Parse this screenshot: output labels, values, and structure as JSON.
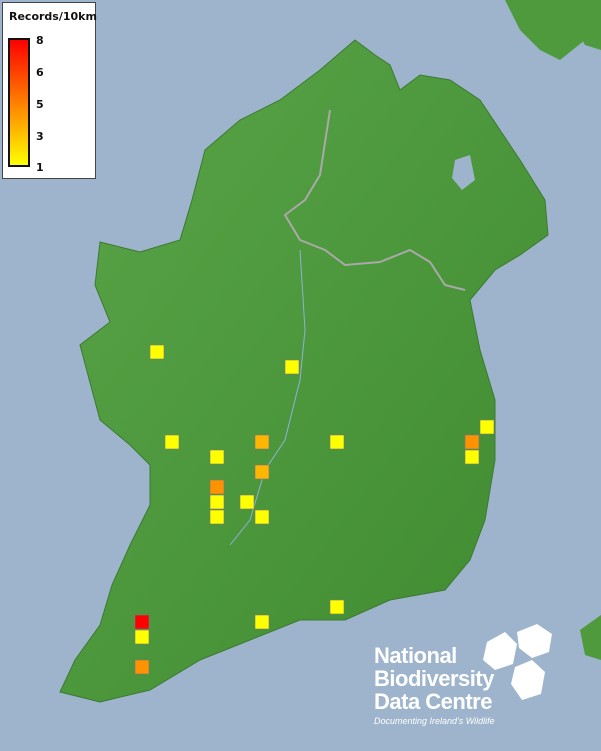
{
  "legend": {
    "title": "Records/10km",
    "ticks": [
      "8",
      "6",
      "5",
      "3",
      "1"
    ],
    "colors": {
      "high": "#ff0000",
      "mid": "#ff8c00",
      "low": "#ffff00"
    }
  },
  "map": {
    "sea_color": "#9db4cc",
    "land_color": "#4f9a3c",
    "squares": [
      1,
      1,
      1,
      3,
      1,
      4,
      1,
      1,
      1,
      3,
      4,
      1,
      1,
      1,
      1,
      1,
      1,
      8,
      1,
      4
    ]
  },
  "logo": {
    "line1": "National",
    "line2": "Biodiversity",
    "line3": "Data Centre",
    "tagline": "Documenting Ireland's Wildlife"
  }
}
